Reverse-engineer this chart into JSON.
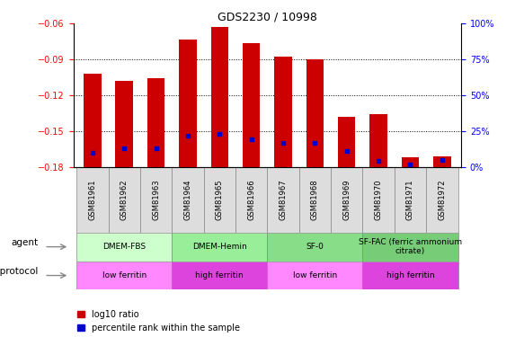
{
  "title": "GDS2230 / 10998",
  "samples": [
    "GSM81961",
    "GSM81962",
    "GSM81963",
    "GSM81964",
    "GSM81965",
    "GSM81966",
    "GSM81967",
    "GSM81968",
    "GSM81969",
    "GSM81970",
    "GSM81971",
    "GSM81972"
  ],
  "log10_ratio": [
    -0.102,
    -0.108,
    -0.106,
    -0.073,
    -0.063,
    -0.076,
    -0.088,
    -0.09,
    -0.138,
    -0.136,
    -0.172,
    -0.171
  ],
  "percentile_rank": [
    10,
    13,
    13,
    22,
    23,
    19,
    17,
    17,
    11,
    4,
    2,
    5
  ],
  "ylim_left": [
    -0.18,
    -0.06
  ],
  "ylim_right": [
    0,
    100
  ],
  "yticks_left": [
    -0.18,
    -0.15,
    -0.12,
    -0.09,
    -0.06
  ],
  "yticks_right": [
    0,
    25,
    50,
    75,
    100
  ],
  "bar_color": "#cc0000",
  "dot_color": "#0000cc",
  "background_color": "#ffffff",
  "agent_groups": [
    {
      "label": "DMEM-FBS",
      "start": 0,
      "end": 3,
      "color": "#ccffcc"
    },
    {
      "label": "DMEM-Hemin",
      "start": 3,
      "end": 6,
      "color": "#99ee99"
    },
    {
      "label": "SF-0",
      "start": 6,
      "end": 9,
      "color": "#88dd88"
    },
    {
      "label": "SF-FAC (ferric ammonium\ncitrate)",
      "start": 9,
      "end": 12,
      "color": "#77cc77"
    }
  ],
  "growth_groups": [
    {
      "label": "low ferritin",
      "start": 0,
      "end": 3,
      "color": "#ff88ff"
    },
    {
      "label": "high ferritin",
      "start": 3,
      "end": 6,
      "color": "#dd44dd"
    },
    {
      "label": "low ferritin",
      "start": 6,
      "end": 9,
      "color": "#ff88ff"
    },
    {
      "label": "high ferritin",
      "start": 9,
      "end": 12,
      "color": "#dd44dd"
    }
  ],
  "legend_items": [
    {
      "label": "log10 ratio",
      "color": "#cc0000"
    },
    {
      "label": "percentile rank within the sample",
      "color": "#0000cc"
    }
  ],
  "label_fontsize": 7,
  "tick_fontsize": 7,
  "sample_fontsize": 6
}
